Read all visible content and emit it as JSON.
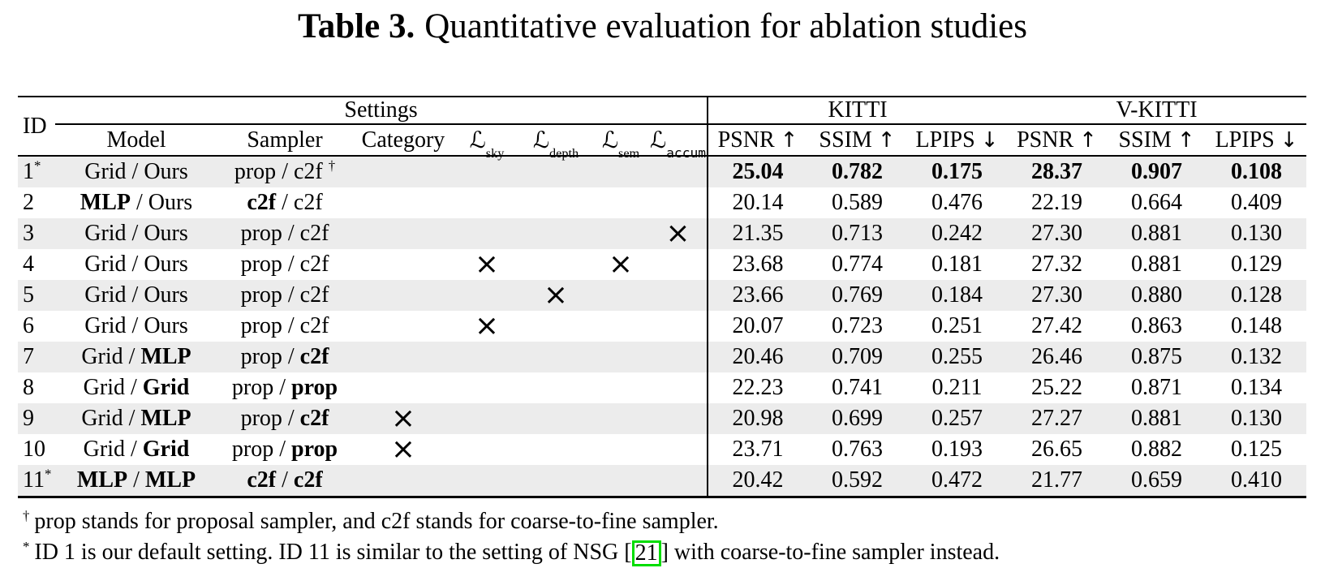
{
  "caption": {
    "label": "Table 3.",
    "text": "Quantitative evaluation for ablation studies"
  },
  "table": {
    "header": {
      "id": "ID",
      "settings": "Settings",
      "kitti": "KITTI",
      "vkitti": "V-KITTI",
      "model": "Model",
      "sampler": "Sampler",
      "category": "Category",
      "losses": [
        {
          "symbol": "ℒ",
          "name": "sky",
          "mono": false
        },
        {
          "symbol": "ℒ",
          "name": "depth",
          "mono": false
        },
        {
          "symbol": "ℒ",
          "name": "sem",
          "mono": false
        },
        {
          "symbol": "ℒ",
          "name": "accum",
          "mono": true
        }
      ],
      "metrics": [
        {
          "name": "PSNR",
          "arrow": "↑"
        },
        {
          "name": "SSIM",
          "arrow": "↑"
        },
        {
          "name": "LPIPS",
          "arrow": "↓"
        }
      ]
    },
    "mark_columns": [
      "category",
      "sky",
      "depth",
      "sem",
      "accum"
    ],
    "rows": [
      {
        "id": "1",
        "sup": "*",
        "model": {
          "a": "Grid",
          "a_bold": false,
          "b": "Ours",
          "b_bold": false
        },
        "sampler": {
          "a": "prop",
          "a_bold": false,
          "b": "c2f",
          "b_bold": false,
          "sup": "†"
        },
        "marks": [
          "",
          "",
          "",
          "",
          ""
        ],
        "bold": true,
        "values": [
          "25.04",
          "0.782",
          "0.175",
          "28.37",
          "0.907",
          "0.108"
        ]
      },
      {
        "id": "2",
        "sup": "",
        "model": {
          "a": "MLP",
          "a_bold": true,
          "b": "Ours",
          "b_bold": false
        },
        "sampler": {
          "a": "c2f",
          "a_bold": true,
          "b": "c2f",
          "b_bold": false,
          "sup": ""
        },
        "marks": [
          "",
          "",
          "",
          "",
          ""
        ],
        "bold": false,
        "values": [
          "20.14",
          "0.589",
          "0.476",
          "22.19",
          "0.664",
          "0.409"
        ]
      },
      {
        "id": "3",
        "sup": "",
        "model": {
          "a": "Grid",
          "a_bold": false,
          "b": "Ours",
          "b_bold": false
        },
        "sampler": {
          "a": "prop",
          "a_bold": false,
          "b": "c2f",
          "b_bold": false,
          "sup": ""
        },
        "marks": [
          "",
          "",
          "",
          "",
          "×"
        ],
        "bold": false,
        "values": [
          "21.35",
          "0.713",
          "0.242",
          "27.30",
          "0.881",
          "0.130"
        ]
      },
      {
        "id": "4",
        "sup": "",
        "model": {
          "a": "Grid",
          "a_bold": false,
          "b": "Ours",
          "b_bold": false
        },
        "sampler": {
          "a": "prop",
          "a_bold": false,
          "b": "c2f",
          "b_bold": false,
          "sup": ""
        },
        "marks": [
          "",
          "×",
          "",
          "×",
          ""
        ],
        "bold": false,
        "values": [
          "23.68",
          "0.774",
          "0.181",
          "27.32",
          "0.881",
          "0.129"
        ]
      },
      {
        "id": "5",
        "sup": "",
        "model": {
          "a": "Grid",
          "a_bold": false,
          "b": "Ours",
          "b_bold": false
        },
        "sampler": {
          "a": "prop",
          "a_bold": false,
          "b": "c2f",
          "b_bold": false,
          "sup": ""
        },
        "marks": [
          "",
          "",
          "×",
          "",
          ""
        ],
        "bold": false,
        "values": [
          "23.66",
          "0.769",
          "0.184",
          "27.30",
          "0.880",
          "0.128"
        ]
      },
      {
        "id": "6",
        "sup": "",
        "model": {
          "a": "Grid",
          "a_bold": false,
          "b": "Ours",
          "b_bold": false
        },
        "sampler": {
          "a": "prop",
          "a_bold": false,
          "b": "c2f",
          "b_bold": false,
          "sup": ""
        },
        "marks": [
          "",
          "×",
          "",
          "",
          ""
        ],
        "bold": false,
        "values": [
          "20.07",
          "0.723",
          "0.251",
          "27.42",
          "0.863",
          "0.148"
        ]
      },
      {
        "id": "7",
        "sup": "",
        "model": {
          "a": "Grid",
          "a_bold": false,
          "b": "MLP",
          "b_bold": true
        },
        "sampler": {
          "a": "prop",
          "a_bold": false,
          "b": "c2f",
          "b_bold": true,
          "sup": ""
        },
        "marks": [
          "",
          "",
          "",
          "",
          ""
        ],
        "bold": false,
        "values": [
          "20.46",
          "0.709",
          "0.255",
          "26.46",
          "0.875",
          "0.132"
        ]
      },
      {
        "id": "8",
        "sup": "",
        "model": {
          "a": "Grid",
          "a_bold": false,
          "b": "Grid",
          "b_bold": true
        },
        "sampler": {
          "a": "prop",
          "a_bold": false,
          "b": "prop",
          "b_bold": true,
          "sup": ""
        },
        "marks": [
          "",
          "",
          "",
          "",
          ""
        ],
        "bold": false,
        "values": [
          "22.23",
          "0.741",
          "0.211",
          "25.22",
          "0.871",
          "0.134"
        ]
      },
      {
        "id": "9",
        "sup": "",
        "model": {
          "a": "Grid",
          "a_bold": false,
          "b": "MLP",
          "b_bold": true
        },
        "sampler": {
          "a": "prop",
          "a_bold": false,
          "b": "c2f",
          "b_bold": true,
          "sup": ""
        },
        "marks": [
          "×",
          "",
          "",
          "",
          ""
        ],
        "bold": false,
        "values": [
          "20.98",
          "0.699",
          "0.257",
          "27.27",
          "0.881",
          "0.130"
        ]
      },
      {
        "id": "10",
        "sup": "",
        "model": {
          "a": "Grid",
          "a_bold": false,
          "b": "Grid",
          "b_bold": true
        },
        "sampler": {
          "a": "prop",
          "a_bold": false,
          "b": "prop",
          "b_bold": true,
          "sup": ""
        },
        "marks": [
          "×",
          "",
          "",
          "",
          ""
        ],
        "bold": false,
        "values": [
          "23.71",
          "0.763",
          "0.193",
          "26.65",
          "0.882",
          "0.125"
        ]
      },
      {
        "id": "11",
        "sup": "*",
        "model": {
          "a": "MLP",
          "a_bold": true,
          "b": "MLP",
          "b_bold": true
        },
        "sampler": {
          "a": "c2f",
          "a_bold": true,
          "b": "c2f",
          "b_bold": true,
          "sup": ""
        },
        "marks": [
          "",
          "",
          "",
          "",
          ""
        ],
        "bold": false,
        "values": [
          "20.42",
          "0.592",
          "0.472",
          "21.77",
          "0.659",
          "0.410"
        ]
      }
    ]
  },
  "footnotes": {
    "dagger": {
      "sup": "†",
      "text": "prop stands for proposal sampler, and c2f stands for coarse-to-fine sampler."
    },
    "star": {
      "sup": "*",
      "before": "ID 1 is our default setting. ID 11 is similar to the setting of NSG [",
      "cite": "21",
      "after": "] with coarse-to-fine sampler instead."
    }
  },
  "colors": {
    "stripe": "#ececec",
    "rule": "#000000",
    "cite_box": "#00dd00"
  }
}
